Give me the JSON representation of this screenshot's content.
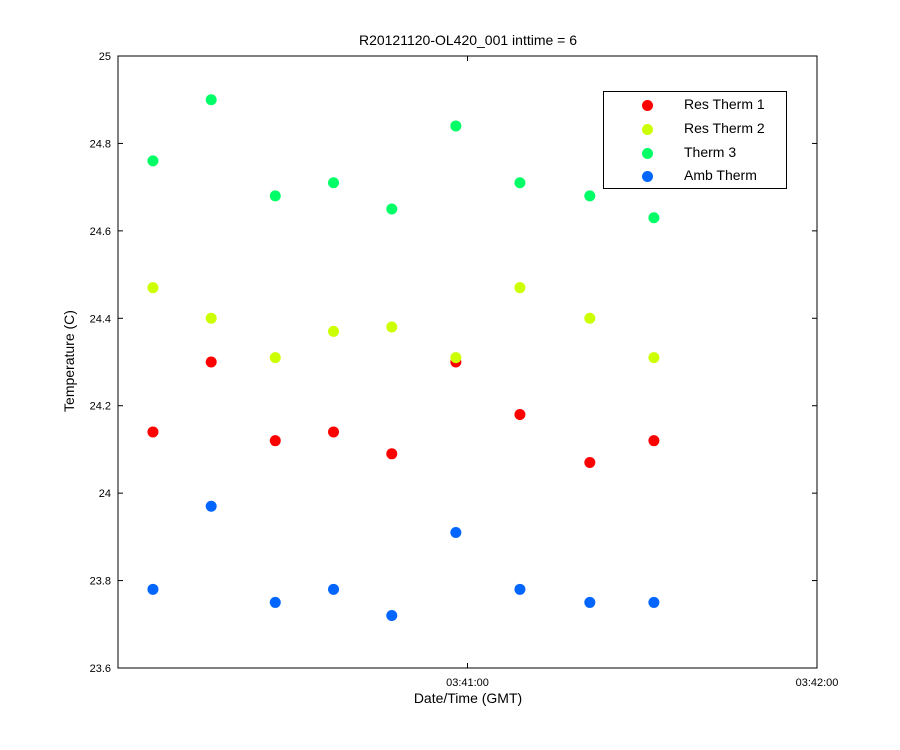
{
  "chart_data": {
    "type": "scatter",
    "title": "R20121120-OL420_001 inttime = 6",
    "xlabel": "Date/Time (GMT)",
    "ylabel": "Temperature (C)",
    "xlim": [
      "03:40:00",
      "03:42:00"
    ],
    "ylim": [
      23.6,
      25
    ],
    "xtick_labels": [
      "03:41:00",
      "03:42:00"
    ],
    "yticks": [
      23.6,
      23.8,
      24,
      24.2,
      24.4,
      24.6,
      24.8,
      25
    ],
    "ytick_labels": [
      "23.6",
      "23.8",
      "24",
      "24.2",
      "24.4",
      "24.6",
      "24.8",
      "25"
    ],
    "x": [
      "03:40:06",
      "03:40:16",
      "03:40:27",
      "03:40:37",
      "03:40:47",
      "03:40:58",
      "03:41:09",
      "03:41:21",
      "03:41:32"
    ],
    "legend_position": "top-right",
    "grid": false,
    "series": [
      {
        "name": "Res Therm 1",
        "color": "#ff0000",
        "values": [
          24.14,
          24.3,
          24.12,
          24.14,
          24.09,
          24.3,
          24.18,
          24.07,
          24.12
        ]
      },
      {
        "name": "Res Therm 2",
        "color": "#ccff00",
        "values": [
          24.47,
          24.4,
          24.31,
          24.37,
          24.38,
          24.31,
          24.47,
          24.4,
          24.31
        ]
      },
      {
        "name": "Therm 3",
        "color": "#00ff66",
        "values": [
          24.76,
          24.9,
          24.68,
          24.71,
          24.65,
          24.84,
          24.71,
          24.68,
          24.63
        ]
      },
      {
        "name": "Amb Therm",
        "color": "#0066ff",
        "values": [
          23.78,
          23.97,
          23.75,
          23.78,
          23.72,
          23.91,
          23.78,
          23.75,
          23.75
        ]
      }
    ]
  }
}
